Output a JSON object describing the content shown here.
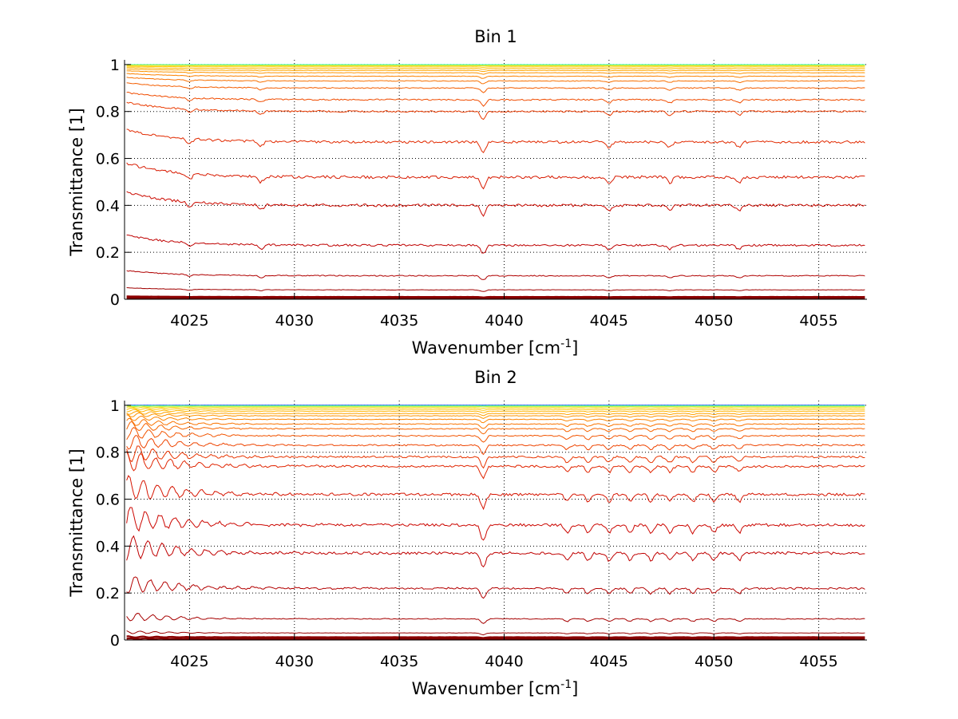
{
  "figure": {
    "background": "#ffffff"
  },
  "chart_data": [
    {
      "type": "line",
      "title": "Bin 1",
      "xlabel": "Wavenumber [cm",
      "xlabel_sup": "-1",
      "xlabel_end": "]",
      "ylabel": "Transmittance [1]",
      "xlim": [
        4021.9,
        4057.3
      ],
      "ylim": [
        0,
        1.02
      ],
      "xticks": [
        4025,
        4030,
        4035,
        4040,
        4045,
        4050,
        4055
      ],
      "xtick_labels": [
        "4025",
        "4030",
        "4035",
        "4040",
        "4045",
        "4050",
        "4055"
      ],
      "yticks": [
        0,
        0.2,
        0.4,
        0.6,
        0.8,
        1
      ],
      "ytick_labels": [
        "0",
        "0.2",
        "0.4",
        "0.6",
        "0.8",
        "1"
      ],
      "grid": true,
      "grid_style": "dotted",
      "colormap": "jet",
      "x_range": [
        4022.0,
        4057.2
      ],
      "features_cm1": [
        4039.0,
        4045.0,
        4047.9,
        4051.2,
        4028.4,
        4025.0
      ],
      "series_levels": [
        0.004,
        0.01,
        0.04,
        0.1,
        0.23,
        0.4,
        0.52,
        0.67,
        0.8,
        0.85,
        0.9,
        0.93,
        0.95,
        0.965,
        0.975,
        0.983,
        0.99,
        0.995,
        0.998,
        1.0
      ],
      "series_colors": [
        "#800000",
        "#8f0000",
        "#a00000",
        "#b00000",
        "#bf0000",
        "#cc0a00",
        "#d81a00",
        "#e22a00",
        "#ea3a00",
        "#f04c00",
        "#f45e00",
        "#f87000",
        "#fb8200",
        "#fd9400",
        "#ffa600",
        "#ffb800",
        "#ffca00",
        "#e8e010",
        "#9ff060",
        "#40ffbf"
      ]
    },
    {
      "type": "line",
      "title": "Bin 2",
      "xlabel": "Wavenumber [cm",
      "xlabel_sup": "-1",
      "xlabel_end": "]",
      "ylabel": "Transmittance [1]",
      "xlim": [
        4021.9,
        4057.3
      ],
      "ylim": [
        0,
        1.02
      ],
      "xticks": [
        4025,
        4030,
        4035,
        4040,
        4045,
        4050,
        4055
      ],
      "xtick_labels": [
        "4025",
        "4030",
        "4035",
        "4040",
        "4045",
        "4050",
        "4055"
      ],
      "yticks": [
        0,
        0.2,
        0.4,
        0.6,
        0.8,
        1
      ],
      "ytick_labels": [
        "0",
        "0.2",
        "0.4",
        "0.6",
        "0.8",
        "1"
      ],
      "grid": true,
      "grid_style": "dotted",
      "colormap": "jet",
      "x_range": [
        4022.0,
        4057.2
      ],
      "features_cm1": [
        4039.0,
        4043.0,
        4044.0,
        4045.0,
        4046.0,
        4047.0,
        4047.9,
        4049.0,
        4050.0,
        4051.2
      ],
      "series_levels": [
        0.005,
        0.012,
        0.03,
        0.09,
        0.22,
        0.37,
        0.49,
        0.62,
        0.74,
        0.78,
        0.83,
        0.87,
        0.9,
        0.92,
        0.94,
        0.955,
        0.965,
        0.975,
        0.983,
        0.99,
        0.995,
        0.998,
        1.0,
        1.0
      ],
      "series_colors": [
        "#800000",
        "#8c0000",
        "#990000",
        "#a60000",
        "#b30000",
        "#c00000",
        "#cc0600",
        "#d61400",
        "#e02400",
        "#e83400",
        "#ee4400",
        "#f25400",
        "#f66400",
        "#fa7400",
        "#fc8400",
        "#fe9400",
        "#ffa400",
        "#ffb400",
        "#ffc400",
        "#f0d800",
        "#b8f040",
        "#60ff9f",
        "#10a0ff",
        "#0040ff"
      ]
    }
  ]
}
